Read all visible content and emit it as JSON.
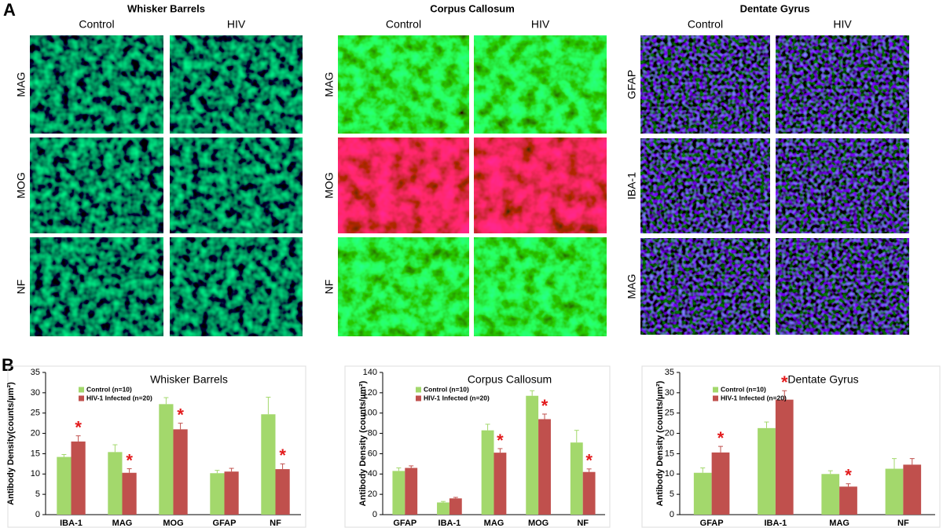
{
  "figure": {
    "panel_a_label": "A",
    "panel_b_label": "B",
    "panels": [
      {
        "title": "Whisker Barrels",
        "columns": [
          "Control",
          "HIV"
        ],
        "rows": [
          "MAG",
          "MOG",
          "NF"
        ]
      },
      {
        "title": "Corpus Callosum",
        "columns": [
          "Control",
          "HIV"
        ],
        "rows": [
          "MAG",
          "MOG",
          "NF"
        ]
      },
      {
        "title": "Dentate Gyrus",
        "columns": [
          "Control",
          "HIV"
        ],
        "rows": [
          "GFAP",
          "IBA-1",
          "MAG"
        ]
      }
    ]
  },
  "chart_data": [
    {
      "type": "bar",
      "title": "Whisker Barrels",
      "y_label": "Antibody Density(counts/µm²)",
      "categories": [
        "IBA-1",
        "MAG",
        "MOG",
        "GFAP",
        "NF"
      ],
      "series": [
        {
          "name": "Control (n=10)",
          "color": "#a3d86c",
          "values": [
            14.2,
            15.4,
            27.2,
            10.2,
            24.7
          ],
          "errors": [
            0.6,
            1.8,
            1.6,
            0.7,
            4.2
          ]
        },
        {
          "name": "HIV-1 Infected (n=20)",
          "color": "#c0504d",
          "values": [
            18.0,
            10.3,
            21.0,
            10.6,
            11.2
          ],
          "errors": [
            1.4,
            1.0,
            1.5,
            0.8,
            1.3
          ],
          "annotations": [
            "*",
            "*",
            "*",
            null,
            "*"
          ]
        }
      ],
      "ylim": [
        0,
        35
      ],
      "yticks": [
        0,
        5,
        10,
        15,
        20,
        25,
        30,
        35
      ]
    },
    {
      "type": "bar",
      "title": "Corpus Callosum",
      "y_label": "Antibody Density (counts/µm²)",
      "categories": [
        "GFAP",
        "IBA-1",
        "MAG",
        "MOG",
        "NF"
      ],
      "series": [
        {
          "name": "Control (n=10)",
          "color": "#a3d86c",
          "values": [
            43,
            12,
            83,
            117,
            71
          ],
          "errors": [
            3,
            1,
            6,
            5,
            12
          ]
        },
        {
          "name": "HIV-1 Infected (n=20)",
          "color": "#c0504d",
          "values": [
            46,
            16,
            61,
            94,
            42
          ],
          "errors": [
            2,
            1,
            4,
            5,
            3
          ],
          "annotations": [
            null,
            null,
            "*",
            "*",
            "*"
          ]
        }
      ],
      "ylim": [
        0,
        140
      ],
      "yticks": [
        0,
        20,
        40,
        60,
        80,
        100,
        120,
        140
      ]
    },
    {
      "type": "bar",
      "title": "Dentate Gyrus",
      "y_label": "Antibody Density (counts/µm²)",
      "categories": [
        "GFAP",
        "IBA-1",
        "MAG",
        "NF"
      ],
      "series": [
        {
          "name": "Control (n=10)",
          "color": "#a3d86c",
          "values": [
            10.3,
            21.3,
            10.0,
            11.3
          ],
          "errors": [
            1.2,
            1.5,
            0.8,
            2.5
          ]
        },
        {
          "name": "HIV-1 Infected (n=20)",
          "color": "#c0504d",
          "values": [
            15.3,
            28.3,
            6.9,
            12.3
          ],
          "errors": [
            1.5,
            2.2,
            0.7,
            1.5
          ],
          "annotations": [
            "*",
            "*",
            "*",
            null
          ]
        }
      ],
      "ylim": [
        0,
        35
      ],
      "yticks": [
        0,
        5,
        10,
        15,
        20,
        25,
        30,
        35
      ]
    }
  ]
}
